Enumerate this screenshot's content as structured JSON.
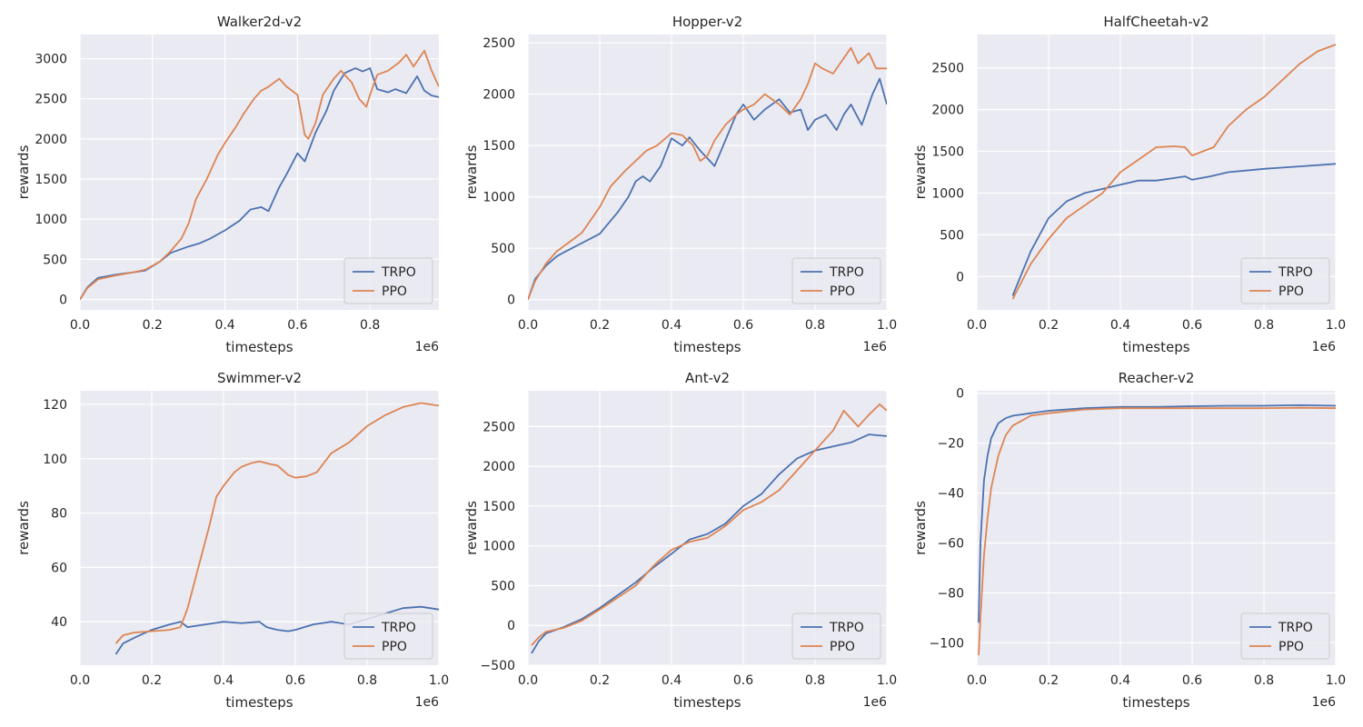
{
  "figure": {
    "colors": {
      "TRPO": "#4c72b0",
      "PPO": "#dd8452",
      "plot_bg": "#eaeaf2",
      "grid": "#ffffff"
    }
  },
  "chart_data": [
    {
      "type": "line",
      "title": "Walker2d-v2",
      "xlabel": "timesteps",
      "ylabel": "rewards",
      "x_scale_label": "1e6",
      "xlim": [
        0,
        0.99
      ],
      "ylim": [
        -130,
        3300
      ],
      "xticks": [
        0.0,
        0.2,
        0.4,
        0.6,
        0.8
      ],
      "xtick_labels": [
        "0.0",
        "0.2",
        "0.4",
        "0.6",
        "0.8"
      ],
      "yticks": [
        0,
        500,
        1000,
        1500,
        2000,
        2500,
        3000
      ],
      "ytick_labels": [
        "0",
        "500",
        "1000",
        "1500",
        "2000",
        "2500",
        "3000"
      ],
      "legend": [
        "TRPO",
        "PPO"
      ],
      "series": [
        {
          "name": "TRPO",
          "x": [
            0,
            0.02,
            0.05,
            0.1,
            0.15,
            0.18,
            0.22,
            0.25,
            0.3,
            0.33,
            0.36,
            0.4,
            0.44,
            0.47,
            0.5,
            0.52,
            0.55,
            0.57,
            0.6,
            0.62,
            0.65,
            0.68,
            0.7,
            0.73,
            0.76,
            0.78,
            0.8,
            0.82,
            0.85,
            0.87,
            0.9,
            0.93,
            0.95,
            0.97,
            0.99
          ],
          "y": [
            0,
            150,
            270,
            310,
            340,
            360,
            470,
            580,
            660,
            700,
            760,
            860,
            980,
            1120,
            1150,
            1100,
            1400,
            1560,
            1820,
            1720,
            2080,
            2350,
            2600,
            2820,
            2880,
            2840,
            2880,
            2620,
            2580,
            2620,
            2570,
            2780,
            2600,
            2540,
            2520
          ]
        },
        {
          "name": "PPO",
          "x": [
            0,
            0.02,
            0.05,
            0.1,
            0.15,
            0.18,
            0.22,
            0.25,
            0.28,
            0.3,
            0.32,
            0.35,
            0.38,
            0.4,
            0.43,
            0.45,
            0.48,
            0.5,
            0.52,
            0.55,
            0.57,
            0.6,
            0.62,
            0.63,
            0.65,
            0.67,
            0.7,
            0.72,
            0.75,
            0.77,
            0.79,
            0.8,
            0.82,
            0.85,
            0.88,
            0.9,
            0.92,
            0.95,
            0.97,
            0.99
          ],
          "y": [
            0,
            140,
            250,
            300,
            340,
            370,
            470,
            600,
            760,
            950,
            1250,
            1500,
            1800,
            1950,
            2150,
            2300,
            2500,
            2600,
            2650,
            2750,
            2650,
            2550,
            2050,
            2000,
            2200,
            2550,
            2750,
            2850,
            2700,
            2500,
            2400,
            2550,
            2800,
            2850,
            2950,
            3050,
            2900,
            3100,
            2850,
            2650
          ]
        }
      ]
    },
    {
      "type": "line",
      "title": "Hopper-v2",
      "xlabel": "timesteps",
      "ylabel": "rewards",
      "x_scale_label": "1e6",
      "xlim": [
        0,
        1.0
      ],
      "ylim": [
        -100,
        2580
      ],
      "xticks": [
        0.0,
        0.2,
        0.4,
        0.6,
        0.8,
        1.0
      ],
      "xtick_labels": [
        "0.0",
        "0.2",
        "0.4",
        "0.6",
        "0.8",
        "1.0"
      ],
      "yticks": [
        0,
        500,
        1000,
        1500,
        2000,
        2500
      ],
      "ytick_labels": [
        "0",
        "500",
        "1000",
        "1500",
        "2000",
        "2500"
      ],
      "legend": [
        "TRPO",
        "PPO"
      ],
      "series": [
        {
          "name": "TRPO",
          "x": [
            0,
            0.02,
            0.05,
            0.08,
            0.1,
            0.15,
            0.2,
            0.25,
            0.28,
            0.3,
            0.32,
            0.34,
            0.37,
            0.4,
            0.43,
            0.45,
            0.48,
            0.52,
            0.55,
            0.58,
            0.6,
            0.63,
            0.66,
            0.7,
            0.73,
            0.76,
            0.78,
            0.8,
            0.83,
            0.86,
            0.88,
            0.9,
            0.93,
            0.96,
            0.98,
            1.0
          ],
          "y": [
            0,
            200,
            330,
            420,
            460,
            550,
            640,
            850,
            1000,
            1150,
            1200,
            1150,
            1300,
            1570,
            1500,
            1580,
            1450,
            1300,
            1550,
            1800,
            1900,
            1750,
            1850,
            1950,
            1820,
            1850,
            1650,
            1750,
            1800,
            1650,
            1800,
            1900,
            1700,
            2000,
            2150,
            1900
          ]
        },
        {
          "name": "PPO",
          "x": [
            0,
            0.02,
            0.05,
            0.08,
            0.1,
            0.15,
            0.2,
            0.23,
            0.27,
            0.3,
            0.33,
            0.36,
            0.4,
            0.43,
            0.46,
            0.48,
            0.5,
            0.52,
            0.55,
            0.58,
            0.6,
            0.63,
            0.66,
            0.7,
            0.73,
            0.76,
            0.78,
            0.8,
            0.82,
            0.85,
            0.88,
            0.9,
            0.92,
            0.95,
            0.97,
            1.0
          ],
          "y": [
            0,
            180,
            350,
            470,
            520,
            650,
            900,
            1100,
            1250,
            1350,
            1450,
            1500,
            1620,
            1600,
            1500,
            1350,
            1400,
            1550,
            1700,
            1800,
            1850,
            1900,
            2000,
            1900,
            1800,
            1950,
            2100,
            2300,
            2250,
            2200,
            2350,
            2450,
            2300,
            2400,
            2250,
            2250
          ]
        }
      ]
    },
    {
      "type": "line",
      "title": "HalfCheetah-v2",
      "xlabel": "timesteps",
      "ylabel": "rewards",
      "x_scale_label": "1e6",
      "xlim": [
        0,
        1.0
      ],
      "ylim": [
        -400,
        2900
      ],
      "xticks": [
        0.0,
        0.2,
        0.4,
        0.6,
        0.8,
        1.0
      ],
      "xtick_labels": [
        "0.0",
        "0.2",
        "0.4",
        "0.6",
        "0.8",
        "1.0"
      ],
      "yticks": [
        0,
        500,
        1000,
        1500,
        2000,
        2500
      ],
      "ytick_labels": [
        "0",
        "500",
        "1000",
        "1500",
        "2000",
        "2500"
      ],
      "legend": [
        "TRPO",
        "PPO"
      ],
      "series": [
        {
          "name": "TRPO",
          "x": [
            0.1,
            0.15,
            0.2,
            0.25,
            0.3,
            0.35,
            0.4,
            0.45,
            0.5,
            0.55,
            0.58,
            0.6,
            0.65,
            0.7,
            0.8,
            0.9,
            1.0
          ],
          "y": [
            -230,
            300,
            700,
            900,
            1000,
            1050,
            1100,
            1150,
            1150,
            1180,
            1200,
            1160,
            1200,
            1250,
            1290,
            1320,
            1350
          ]
        },
        {
          "name": "PPO",
          "x": [
            0.1,
            0.15,
            0.2,
            0.25,
            0.3,
            0.35,
            0.4,
            0.45,
            0.5,
            0.55,
            0.58,
            0.6,
            0.63,
            0.66,
            0.7,
            0.75,
            0.8,
            0.85,
            0.9,
            0.95,
            1.0
          ],
          "y": [
            -270,
            150,
            450,
            700,
            850,
            1000,
            1250,
            1400,
            1550,
            1560,
            1550,
            1450,
            1500,
            1550,
            1800,
            2000,
            2150,
            2350,
            2550,
            2700,
            2780
          ]
        }
      ]
    },
    {
      "type": "line",
      "title": "Swimmer-v2",
      "xlabel": "timesteps",
      "ylabel": "rewards",
      "x_scale_label": "1e6",
      "xlim": [
        0,
        1.0
      ],
      "ylim": [
        24,
        125
      ],
      "xticks": [
        0.0,
        0.2,
        0.4,
        0.6,
        0.8,
        1.0
      ],
      "xtick_labels": [
        "0.0",
        "0.2",
        "0.4",
        "0.6",
        "0.8",
        "1.0"
      ],
      "yticks": [
        40,
        60,
        80,
        100,
        120
      ],
      "ytick_labels": [
        "40",
        "60",
        "80",
        "100",
        "120"
      ],
      "legend": [
        "TRPO",
        "PPO"
      ],
      "series": [
        {
          "name": "TRPO",
          "x": [
            0.1,
            0.12,
            0.15,
            0.2,
            0.25,
            0.28,
            0.3,
            0.35,
            0.4,
            0.45,
            0.5,
            0.52,
            0.55,
            0.58,
            0.6,
            0.65,
            0.7,
            0.75,
            0.8,
            0.85,
            0.9,
            0.95,
            1.0
          ],
          "y": [
            28,
            32,
            34,
            37,
            39,
            40,
            38,
            39,
            40,
            39.5,
            40,
            38,
            37,
            36.5,
            37,
            39,
            40,
            39,
            41,
            43,
            45,
            45.5,
            44.5
          ]
        },
        {
          "name": "PPO",
          "x": [
            0.1,
            0.12,
            0.15,
            0.2,
            0.25,
            0.28,
            0.3,
            0.33,
            0.36,
            0.38,
            0.4,
            0.43,
            0.45,
            0.48,
            0.5,
            0.53,
            0.55,
            0.58,
            0.6,
            0.63,
            0.66,
            0.7,
            0.75,
            0.8,
            0.85,
            0.9,
            0.95,
            1.0
          ],
          "y": [
            32,
            35,
            36,
            36.5,
            37,
            38,
            45,
            60,
            75,
            86,
            90,
            95,
            97,
            98.5,
            99,
            98,
            97.5,
            94,
            93,
            93.5,
            95,
            102,
            106,
            112,
            116,
            119,
            120.5,
            119.5
          ]
        }
      ]
    },
    {
      "type": "line",
      "title": "Ant-v2",
      "xlabel": "timesteps",
      "ylabel": "rewards",
      "x_scale_label": "1e6",
      "xlim": [
        0,
        1.0
      ],
      "ylim": [
        -500,
        2950
      ],
      "xticks": [
        0.0,
        0.2,
        0.4,
        0.6,
        0.8,
        1.0
      ],
      "xtick_labels": [
        "0.0",
        "0.2",
        "0.4",
        "0.6",
        "0.8",
        "1.0"
      ],
      "yticks": [
        -500,
        0,
        500,
        1000,
        1500,
        2000,
        2500
      ],
      "ytick_labels": [
        "−500",
        "0",
        "500",
        "1000",
        "1500",
        "2000",
        "2500"
      ],
      "legend": [
        "TRPO",
        "PPO"
      ],
      "series": [
        {
          "name": "TRPO",
          "x": [
            0.01,
            0.03,
            0.05,
            0.1,
            0.15,
            0.2,
            0.25,
            0.3,
            0.35,
            0.4,
            0.45,
            0.5,
            0.55,
            0.6,
            0.65,
            0.7,
            0.75,
            0.8,
            0.85,
            0.9,
            0.95,
            1.0
          ],
          "y": [
            -350,
            -200,
            -100,
            -20,
            80,
            220,
            380,
            540,
            730,
            900,
            1080,
            1150,
            1280,
            1500,
            1650,
            1900,
            2100,
            2200,
            2250,
            2300,
            2400,
            2380
          ]
        },
        {
          "name": "PPO",
          "x": [
            0.01,
            0.03,
            0.05,
            0.1,
            0.15,
            0.2,
            0.25,
            0.3,
            0.35,
            0.4,
            0.45,
            0.5,
            0.55,
            0.6,
            0.65,
            0.7,
            0.75,
            0.8,
            0.85,
            0.88,
            0.92,
            0.95,
            0.98,
            1.0
          ],
          "y": [
            -250,
            -150,
            -80,
            -30,
            60,
            200,
            350,
            500,
            750,
            950,
            1050,
            1100,
            1250,
            1450,
            1550,
            1700,
            1950,
            2200,
            2450,
            2700,
            2500,
            2650,
            2780,
            2700
          ]
        }
      ]
    },
    {
      "type": "line",
      "title": "Reacher-v2",
      "xlabel": "timesteps",
      "ylabel": "rewards",
      "x_scale_label": "1e6",
      "xlim": [
        0,
        1.0
      ],
      "ylim": [
        -109,
        1
      ],
      "xticks": [
        0.0,
        0.2,
        0.4,
        0.6,
        0.8,
        1.0
      ],
      "xtick_labels": [
        "0.0",
        "0.2",
        "0.4",
        "0.6",
        "0.8",
        "1.0"
      ],
      "yticks": [
        -100,
        -80,
        -60,
        -40,
        -20,
        0
      ],
      "ytick_labels": [
        "−100",
        "−80",
        "−60",
        "−40",
        "−20",
        "0"
      ],
      "legend": [
        "TRPO",
        "PPO"
      ],
      "series": [
        {
          "name": "TRPO",
          "x": [
            0.005,
            0.01,
            0.02,
            0.03,
            0.04,
            0.06,
            0.08,
            0.1,
            0.15,
            0.2,
            0.3,
            0.4,
            0.5,
            0.6,
            0.7,
            0.8,
            0.9,
            1.0
          ],
          "y": [
            -92,
            -60,
            -35,
            -25,
            -18,
            -12,
            -10,
            -9,
            -8,
            -7,
            -6,
            -5.5,
            -5.5,
            -5.2,
            -5,
            -5,
            -4.8,
            -5
          ]
        },
        {
          "name": "PPO",
          "x": [
            0.005,
            0.01,
            0.02,
            0.03,
            0.04,
            0.06,
            0.08,
            0.1,
            0.15,
            0.2,
            0.3,
            0.4,
            0.5,
            0.6,
            0.7,
            0.8,
            0.9,
            1.0
          ],
          "y": [
            -105,
            -90,
            -65,
            -50,
            -38,
            -25,
            -17,
            -13,
            -9,
            -8,
            -6.5,
            -6,
            -6,
            -6,
            -6,
            -6,
            -5.8,
            -6
          ]
        }
      ]
    }
  ]
}
